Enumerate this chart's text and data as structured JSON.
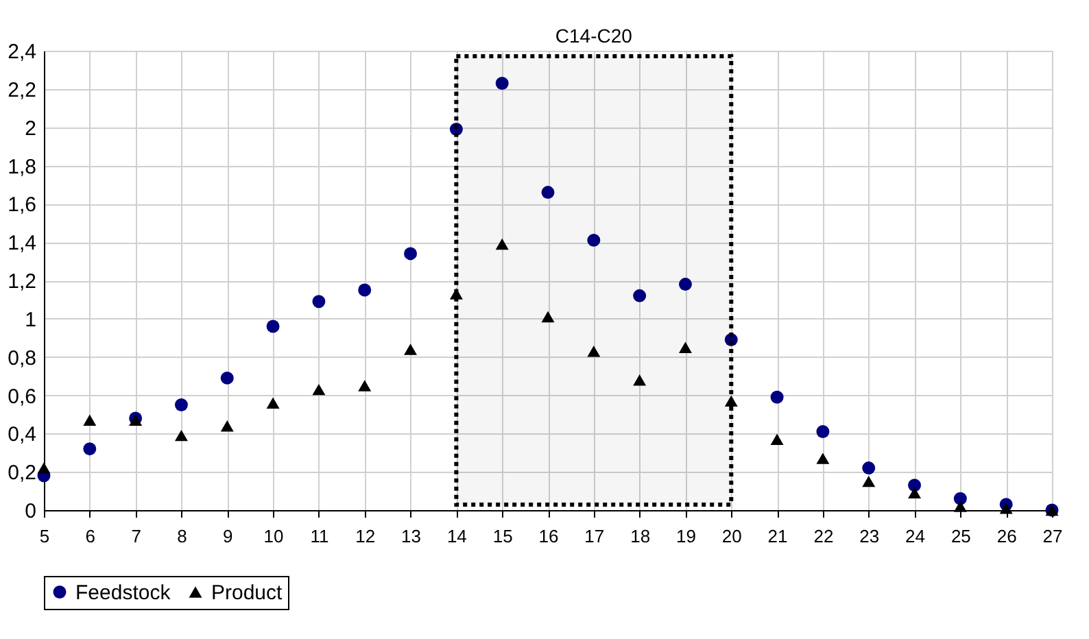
{
  "chart_data": {
    "type": "scatter",
    "x": [
      5,
      6,
      7,
      8,
      9,
      10,
      11,
      12,
      13,
      14,
      15,
      16,
      17,
      18,
      19,
      20,
      21,
      22,
      23,
      24,
      25,
      26,
      27
    ],
    "series": [
      {
        "name": "Feedstock",
        "color": "#000080",
        "marker": "circle",
        "values": [
          0.18,
          0.32,
          0.48,
          0.55,
          0.69,
          0.96,
          1.09,
          1.15,
          1.34,
          1.99,
          2.23,
          1.66,
          1.41,
          1.12,
          1.18,
          0.89,
          0.59,
          0.41,
          0.22,
          0.13,
          0.06,
          0.03,
          0.0
        ]
      },
      {
        "name": "Product",
        "color": "#000000",
        "marker": "triangle",
        "values": [
          0.22,
          0.47,
          0.47,
          0.39,
          0.44,
          0.56,
          0.63,
          0.65,
          0.84,
          1.13,
          1.39,
          1.01,
          0.83,
          0.68,
          0.85,
          0.57,
          0.37,
          0.27,
          0.15,
          0.09,
          0.02,
          0.01,
          0.0
        ]
      }
    ],
    "xlim": [
      5,
      27
    ],
    "xticks": [
      5,
      6,
      7,
      8,
      9,
      10,
      11,
      12,
      13,
      14,
      15,
      16,
      17,
      18,
      19,
      20,
      21,
      22,
      23,
      24,
      25,
      26,
      27
    ],
    "ylim": [
      0,
      2.4
    ],
    "yticks": [
      0,
      {
        "value": 0.2,
        "label": "0,2"
      },
      {
        "value": 0.4,
        "label": "0,4"
      },
      {
        "value": 0.6,
        "label": "0,6"
      },
      {
        "value": 0.8,
        "label": "0,8"
      },
      1,
      {
        "value": 1.2,
        "label": "1,2"
      },
      {
        "value": 1.4,
        "label": "1,4"
      },
      {
        "value": 1.6,
        "label": "1,6"
      },
      {
        "value": 1.8,
        "label": "1,8"
      },
      2,
      {
        "value": 2.2,
        "label": "2,2"
      },
      {
        "value": 2.4,
        "label": "2,4"
      }
    ],
    "bands": [
      {
        "axis": "x",
        "from": 14,
        "to": 20,
        "label": "C14-C20",
        "color": "#000000"
      }
    ],
    "grid": true,
    "legend": "bottom"
  }
}
